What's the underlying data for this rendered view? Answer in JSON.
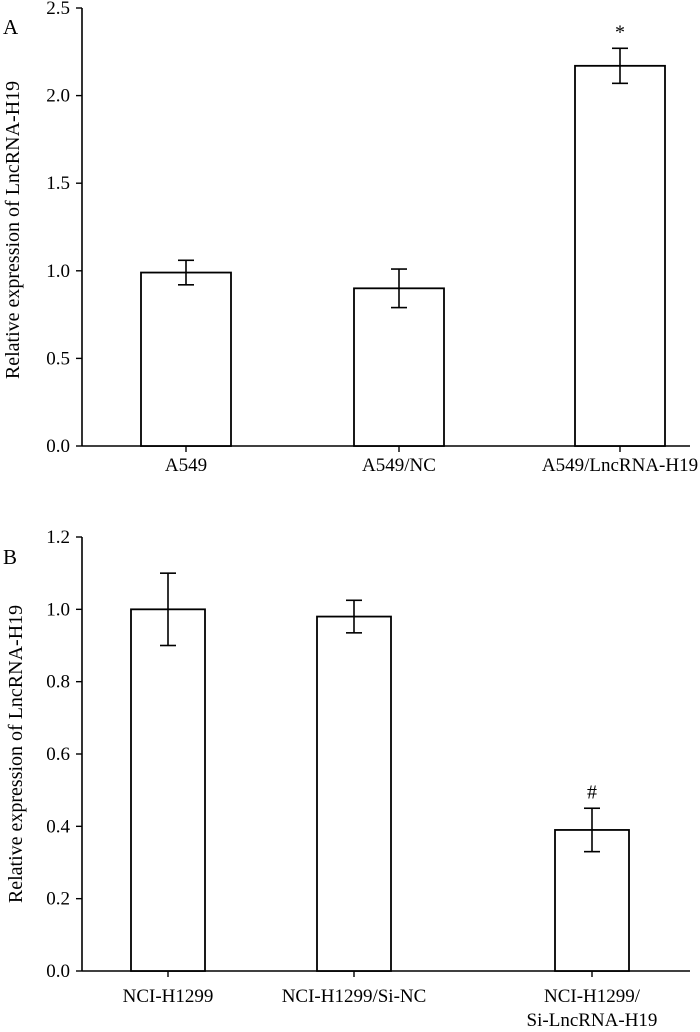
{
  "chart_data": [
    {
      "panel_label": "A",
      "type": "bar",
      "ylabel": "Relative expression of  LncRNA-H19",
      "xlabel": "",
      "ylim": [
        0,
        2.5
      ],
      "yticks": [
        0.0,
        0.5,
        1.0,
        1.5,
        2.0,
        2.5
      ],
      "ytick_labels": [
        "0.0",
        "0.5",
        "1.0",
        "1.5",
        "2.0",
        "2.5"
      ],
      "categories": [
        {
          "lines": [
            "A549"
          ]
        },
        {
          "lines": [
            "A549/NC"
          ]
        },
        {
          "lines": [
            "A549/LncRNA-H19"
          ]
        }
      ],
      "values": [
        0.99,
        0.9,
        2.17
      ],
      "errors": [
        0.07,
        0.11,
        0.1
      ],
      "markers": [
        "",
        "",
        "*"
      ]
    },
    {
      "panel_label": "B",
      "type": "bar",
      "ylabel": "Relative expression of LncRNA-H19",
      "xlabel": "",
      "ylim": [
        0,
        1.2
      ],
      "yticks": [
        0.0,
        0.2,
        0.4,
        0.6,
        0.8,
        1.0,
        1.2
      ],
      "ytick_labels": [
        "0.0",
        "0.2",
        "0.4",
        "0.6",
        "0.8",
        "1.0",
        "1.2"
      ],
      "categories": [
        {
          "lines": [
            "NCI-H1299"
          ]
        },
        {
          "lines": [
            "NCI-H1299/Si-NC"
          ]
        },
        {
          "lines": [
            "NCI-H1299/",
            "Si-LncRNA-H19"
          ]
        }
      ],
      "values": [
        1.0,
        0.98,
        0.39
      ],
      "errors": [
        0.1,
        0.045,
        0.06
      ],
      "markers": [
        "",
        "",
        "#"
      ]
    }
  ]
}
